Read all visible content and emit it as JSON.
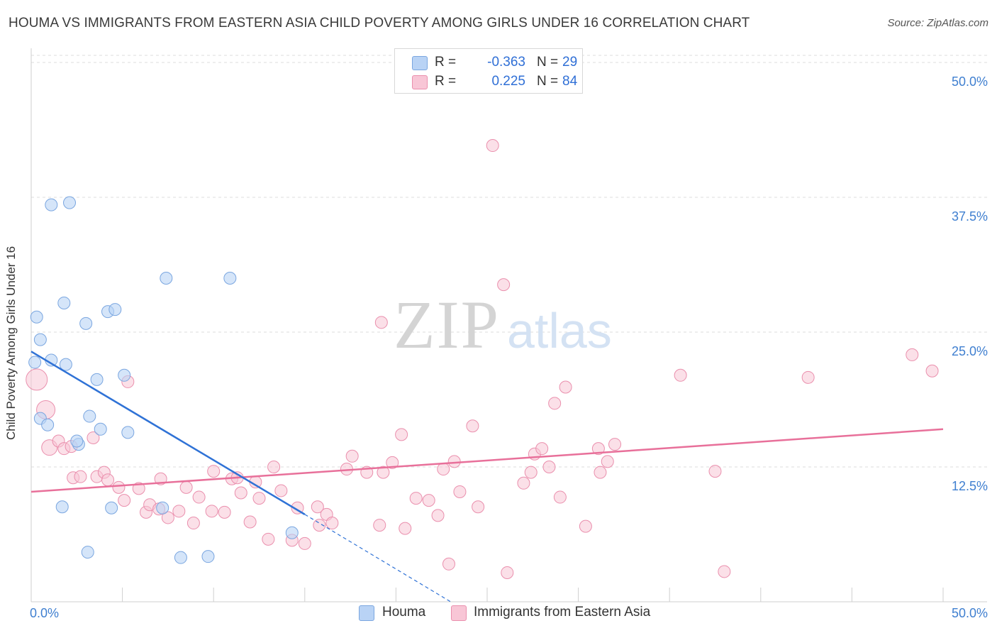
{
  "header": {
    "title": "HOUMA VS IMMIGRANTS FROM EASTERN ASIA CHILD POVERTY AMONG GIRLS UNDER 16 CORRELATION CHART",
    "source": "Source: ZipAtlas.com"
  },
  "watermark": {
    "zip": "ZIP",
    "atlas": "atlas"
  },
  "legend": {
    "rows": [
      {
        "r_label": "R =",
        "r_value": "-0.363",
        "n_label": "N =",
        "n_value": "29"
      },
      {
        "r_label": "R =",
        "r_value": "0.225",
        "n_label": "N =",
        "n_value": "84"
      }
    ],
    "bottom": [
      "Houma",
      "Immigrants from Eastern Asia"
    ]
  },
  "colors": {
    "houma_fill": "#b9d3f5",
    "houma_stroke": "#7aa6e0",
    "houma_line": "#2f72d6",
    "imm_fill": "#f8c6d6",
    "imm_stroke": "#ea8fad",
    "imm_line": "#e8709a",
    "tick_text": "#3f7fd0",
    "grid": "#dcdcdc"
  },
  "chart_data": {
    "type": "scatter",
    "title": "HOUMA VS IMMIGRANTS FROM EASTERN ASIA CHILD POVERTY AMONG GIRLS UNDER 16 CORRELATION CHART",
    "xlabel": "",
    "ylabel": "Child Poverty Among Girls Under 16",
    "xlim": [
      0,
      50
    ],
    "ylim": [
      0,
      50
    ],
    "x_tick_labels": [
      "0.0%",
      "50.0%"
    ],
    "y_ticks": [
      12.5,
      25.0,
      37.5,
      50.0
    ],
    "y_tick_labels": [
      "12.5%",
      "25.0%",
      "37.5%",
      "50.0%"
    ],
    "grid": true,
    "legend_position": "top-center",
    "series": [
      {
        "name": "Houma",
        "r": -0.363,
        "n": 29,
        "points": [
          [
            0.2,
            22.2
          ],
          [
            0.3,
            26.4
          ],
          [
            0.5,
            17.0
          ],
          [
            0.5,
            24.3
          ],
          [
            0.9,
            16.4
          ],
          [
            1.1,
            22.4
          ],
          [
            1.9,
            22.0
          ],
          [
            1.1,
            36.8
          ],
          [
            2.1,
            37.0
          ],
          [
            1.8,
            27.7
          ],
          [
            3.0,
            25.8
          ],
          [
            4.2,
            26.9
          ],
          [
            4.6,
            27.1
          ],
          [
            2.6,
            14.6
          ],
          [
            2.5,
            14.9
          ],
          [
            1.7,
            8.8
          ],
          [
            3.2,
            17.2
          ],
          [
            3.8,
            16.0
          ],
          [
            5.1,
            21.0
          ],
          [
            5.3,
            15.7
          ],
          [
            3.6,
            20.6
          ],
          [
            7.4,
            30.0
          ],
          [
            10.9,
            30.0
          ],
          [
            4.4,
            8.7
          ],
          [
            7.2,
            8.7
          ],
          [
            3.1,
            4.6
          ],
          [
            8.2,
            4.1
          ],
          [
            9.7,
            4.2
          ],
          [
            14.3,
            6.4
          ]
        ],
        "trend": {
          "x0": 0,
          "y0": 23.2,
          "x1": 15,
          "y1": 8.1,
          "dash_to_x": 23,
          "dash_to_y": 0
        }
      },
      {
        "name": "Immigrants from Eastern Asia",
        "r": 0.225,
        "n": 84,
        "points": [
          [
            0.3,
            20.6
          ],
          [
            0.8,
            17.8
          ],
          [
            1.0,
            14.3
          ],
          [
            1.5,
            14.9
          ],
          [
            1.8,
            14.2
          ],
          [
            2.2,
            14.4
          ],
          [
            2.3,
            11.5
          ],
          [
            2.7,
            11.6
          ],
          [
            3.4,
            15.2
          ],
          [
            3.6,
            11.6
          ],
          [
            4.0,
            12.0
          ],
          [
            4.2,
            11.3
          ],
          [
            4.8,
            10.6
          ],
          [
            5.1,
            9.4
          ],
          [
            5.3,
            20.4
          ],
          [
            5.9,
            10.5
          ],
          [
            6.3,
            8.3
          ],
          [
            6.5,
            9.0
          ],
          [
            7.0,
            8.6
          ],
          [
            7.1,
            11.4
          ],
          [
            7.5,
            7.8
          ],
          [
            8.1,
            8.4
          ],
          [
            8.5,
            10.6
          ],
          [
            8.9,
            7.3
          ],
          [
            9.2,
            9.7
          ],
          [
            9.9,
            8.4
          ],
          [
            10.0,
            12.1
          ],
          [
            10.6,
            8.3
          ],
          [
            11.0,
            11.4
          ],
          [
            11.3,
            11.5
          ],
          [
            11.5,
            10.1
          ],
          [
            12.0,
            7.4
          ],
          [
            12.3,
            11.1
          ],
          [
            12.5,
            9.6
          ],
          [
            13.0,
            5.8
          ],
          [
            13.3,
            12.5
          ],
          [
            13.7,
            10.3
          ],
          [
            14.3,
            5.7
          ],
          [
            14.6,
            8.7
          ],
          [
            15.0,
            5.4
          ],
          [
            15.8,
            7.1
          ],
          [
            15.7,
            8.8
          ],
          [
            16.2,
            8.1
          ],
          [
            16.5,
            7.3
          ],
          [
            17.3,
            12.3
          ],
          [
            17.6,
            13.5
          ],
          [
            18.4,
            12.0
          ],
          [
            19.1,
            7.1
          ],
          [
            19.2,
            25.9
          ],
          [
            19.3,
            12.0
          ],
          [
            19.8,
            12.9
          ],
          [
            20.3,
            15.5
          ],
          [
            20.5,
            6.8
          ],
          [
            21.1,
            9.6
          ],
          [
            21.8,
            9.4
          ],
          [
            22.3,
            8.0
          ],
          [
            22.6,
            12.3
          ],
          [
            22.9,
            3.5
          ],
          [
            23.2,
            13.0
          ],
          [
            23.5,
            10.2
          ],
          [
            24.2,
            16.3
          ],
          [
            24.5,
            8.8
          ],
          [
            25.3,
            42.3
          ],
          [
            25.9,
            29.4
          ],
          [
            26.1,
            2.7
          ],
          [
            27.0,
            11.0
          ],
          [
            27.4,
            12.0
          ],
          [
            27.6,
            13.7
          ],
          [
            28.0,
            14.2
          ],
          [
            28.4,
            12.5
          ],
          [
            28.7,
            18.4
          ],
          [
            29.0,
            9.7
          ],
          [
            29.3,
            19.9
          ],
          [
            30.4,
            7.0
          ],
          [
            31.1,
            14.2
          ],
          [
            31.2,
            12.0
          ],
          [
            31.6,
            13.0
          ],
          [
            32.0,
            14.6
          ],
          [
            35.6,
            21.0
          ],
          [
            37.5,
            12.1
          ],
          [
            38.0,
            2.8
          ],
          [
            42.6,
            20.8
          ],
          [
            48.3,
            22.9
          ],
          [
            49.4,
            21.4
          ]
        ],
        "trend": {
          "x0": 0,
          "y0": 10.2,
          "x1": 50,
          "y1": 16.0
        }
      }
    ]
  }
}
